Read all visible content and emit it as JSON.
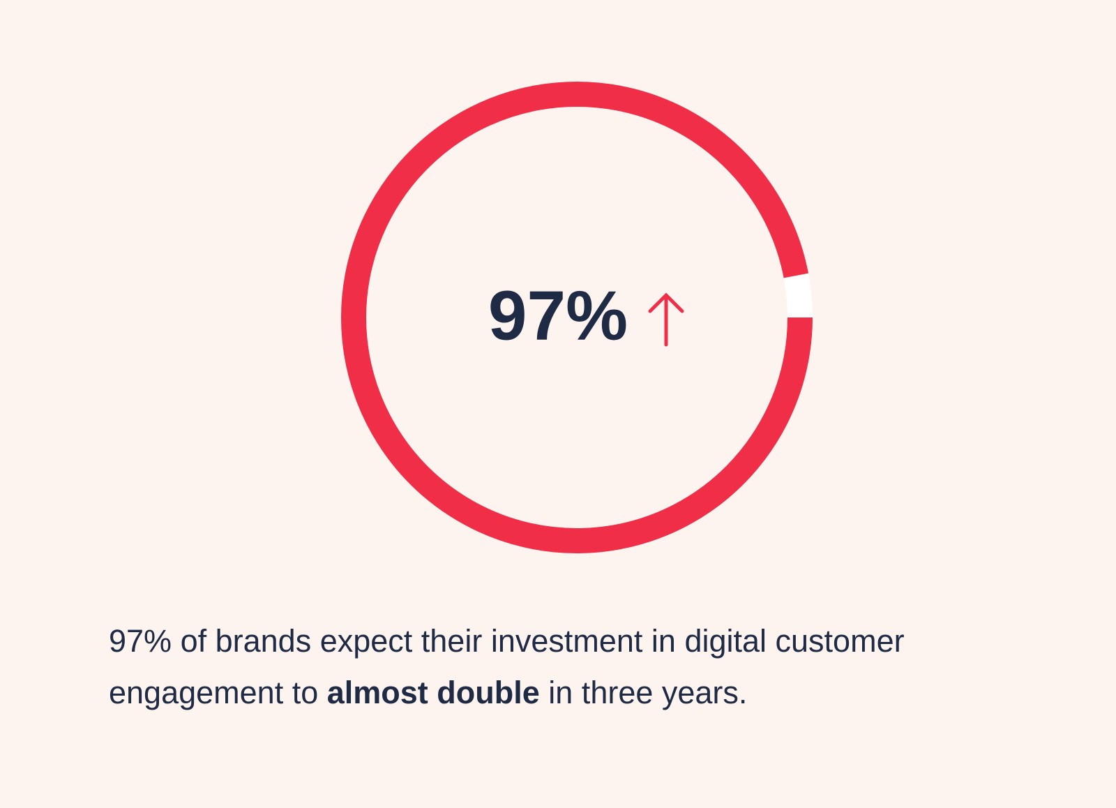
{
  "chart_data": {
    "type": "donut",
    "values": [
      97,
      3
    ],
    "value_labels": [
      "97%",
      null
    ],
    "colors": [
      "#f12e48",
      "#ffffff"
    ],
    "caption": {
      "before": "97% of brands expect their investment in digital customer engagement to ",
      "emphasis": "almost double",
      "after": " in three years."
    }
  }
}
